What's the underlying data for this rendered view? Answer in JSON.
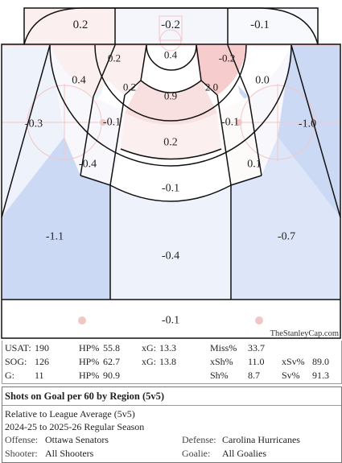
{
  "chart_data": {
    "type": "heatmap",
    "title": "Shots on Goal per 60 by Region (5v5)",
    "subtitle": "Relative to League Average (5v5)",
    "season": "2024-25 to 2025-26 Regular Season",
    "credit": "TheStanleyCap.com",
    "regions": [
      {
        "id": "top-left",
        "value": "0.2"
      },
      {
        "id": "top-center",
        "value": "-0.2"
      },
      {
        "id": "top-right",
        "value": "-0.1"
      },
      {
        "id": "crease",
        "value": "0.4"
      },
      {
        "id": "inner-left",
        "value": "0.2"
      },
      {
        "id": "inner-right",
        "value": "-0.2"
      },
      {
        "id": "slot-left",
        "value": "0.2"
      },
      {
        "id": "slot-center",
        "value": "0.9"
      },
      {
        "id": "slot-right",
        "value": "2.0"
      },
      {
        "id": "ring-left",
        "value": "0.4"
      },
      {
        "id": "ring-right",
        "value": "0.0"
      },
      {
        "id": "mid-left",
        "value": "-0.1"
      },
      {
        "id": "mid-right",
        "value": "-0.1"
      },
      {
        "id": "far-left",
        "value": "-0.3"
      },
      {
        "id": "far-right",
        "value": "-1.0"
      },
      {
        "id": "high-slot",
        "value": "0.2"
      },
      {
        "id": "outer-left",
        "value": "-0.4"
      },
      {
        "id": "outer-right",
        "value": "0.1"
      },
      {
        "id": "top-of-circles",
        "value": "-0.1"
      },
      {
        "id": "point-left",
        "value": "-1.1"
      },
      {
        "id": "point-center",
        "value": "-0.4"
      },
      {
        "id": "point-right",
        "value": "-0.7"
      },
      {
        "id": "neutral",
        "value": "-0.1"
      }
    ]
  },
  "stats": {
    "rows": [
      [
        {
          "k": "USAT:",
          "v": "190"
        },
        {
          "k": "HP%",
          "v": "55.8"
        },
        {
          "k": "xG:",
          "v": "13.3"
        },
        {
          "k": "Miss%",
          "v": "33.7"
        },
        {
          "k": "",
          "v": ""
        }
      ],
      [
        {
          "k": "SOG:",
          "v": "126"
        },
        {
          "k": "HP%",
          "v": "62.7"
        },
        {
          "k": "xG:",
          "v": "13.8"
        },
        {
          "k": "xSh%",
          "v": "11.0"
        },
        {
          "k": "xSv%",
          "v": "89.0"
        }
      ],
      [
        {
          "k": "G:",
          "v": "11"
        },
        {
          "k": "HP%",
          "v": "90.9"
        },
        {
          "k": "",
          "v": ""
        },
        {
          "k": "Sh%",
          "v": "8.7"
        },
        {
          "k": "Sv%",
          "v": "91.3"
        }
      ]
    ]
  },
  "info": {
    "offense_label": "Offense:",
    "offense": "Ottawa Senators",
    "defense_label": "Defense:",
    "defense": "Carolina Hurricanes",
    "shooter_label": "Shooter:",
    "shooter": "All Shooters",
    "goalie_label": "Goalie:",
    "goalie": "All Goalies"
  },
  "colors": {
    "strong_pos": "#f6cccc",
    "light_pos": "#fcefef",
    "neutral": "#ffffff",
    "light_neg": "#edf2fb",
    "mid_neg": "#dde6f8",
    "strong_neg": "#ccd9f5",
    "rink_red": "#f3c6c6",
    "line": "#111111"
  }
}
